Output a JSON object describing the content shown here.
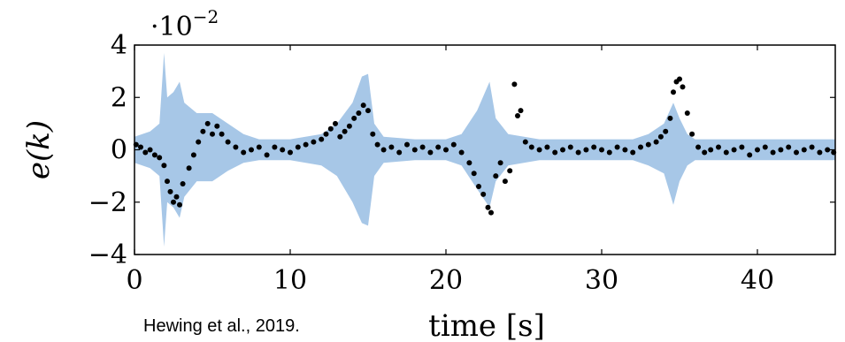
{
  "chart_data": {
    "type": "scatter",
    "xlabel": "time [s]",
    "ylabel": "e(k)",
    "xlim": [
      0,
      45
    ],
    "ylim": [
      -4,
      4
    ],
    "y_scale_annotation": {
      "base": "·10",
      "exponent": "−2"
    },
    "x_ticks": [
      "0",
      "10",
      "20",
      "30",
      "40"
    ],
    "y_ticks": [
      "−4",
      "−2",
      "0",
      "2",
      "4"
    ],
    "colors": {
      "band": "#a7c7e7",
      "points": "#000000",
      "frame": "#000000"
    },
    "uncertainty_band": {
      "name": "",
      "t": [
        0,
        1,
        1.6,
        1.9,
        2.1,
        2.5,
        2.9,
        3.2,
        4,
        5,
        6,
        7,
        8,
        10,
        12,
        13,
        14,
        14.6,
        15,
        15.4,
        16,
        18,
        20,
        21,
        22,
        22.8,
        23.2,
        24,
        26,
        28,
        30,
        32,
        33,
        34,
        34.6,
        35,
        35.5,
        36,
        38,
        40,
        42,
        45
      ],
      "upper": [
        0.5,
        0.7,
        1.0,
        3.7,
        2.0,
        2.2,
        2.6,
        1.8,
        1.4,
        1.4,
        1.0,
        0.6,
        0.4,
        0.4,
        0.6,
        1.0,
        1.8,
        2.8,
        2.9,
        1.0,
        0.5,
        0.4,
        0.4,
        0.6,
        1.5,
        2.6,
        1.2,
        0.6,
        0.4,
        0.4,
        0.4,
        0.4,
        0.6,
        1.0,
        1.8,
        1.2,
        0.6,
        0.4,
        0.4,
        0.4,
        0.4,
        0.4
      ],
      "lower": [
        -0.5,
        -0.7,
        -1.0,
        -3.7,
        -2.0,
        -2.2,
        -2.6,
        -1.8,
        -1.2,
        -1.2,
        -0.8,
        -0.5,
        -0.4,
        -0.4,
        -0.6,
        -1.0,
        -2.0,
        -2.8,
        -2.9,
        -1.0,
        -0.5,
        -0.4,
        -0.4,
        -0.6,
        -1.5,
        -2.2,
        -1.2,
        -0.6,
        -0.4,
        -0.4,
        -0.4,
        -0.4,
        -0.6,
        -0.9,
        -2.1,
        -1.2,
        -0.6,
        -0.4,
        -0.4,
        -0.4,
        -0.4,
        -0.4
      ]
    },
    "points": {
      "name": "",
      "x": [
        0.1,
        0.4,
        0.7,
        1.0,
        1.3,
        1.6,
        1.9,
        2.1,
        2.3,
        2.5,
        2.7,
        2.9,
        3.1,
        3.5,
        3.8,
        4.1,
        4.4,
        4.7,
        5.0,
        5.3,
        5.6,
        6.0,
        6.5,
        7.0,
        7.5,
        8.0,
        8.5,
        9.0,
        9.5,
        10.0,
        10.5,
        11.0,
        11.5,
        12.0,
        12.3,
        12.6,
        12.9,
        13.2,
        13.5,
        13.8,
        14.1,
        14.4,
        14.7,
        15.0,
        15.3,
        15.6,
        16.0,
        16.5,
        17.0,
        17.5,
        18.0,
        18.5,
        19.0,
        19.5,
        20.0,
        20.5,
        21.0,
        21.5,
        21.8,
        22.1,
        22.4,
        22.7,
        22.9,
        23.2,
        23.5,
        23.8,
        24.1,
        24.4,
        24.6,
        24.8,
        25.1,
        25.5,
        26.0,
        26.5,
        27.0,
        27.5,
        28.0,
        28.5,
        29.0,
        29.5,
        30.0,
        30.5,
        31.0,
        31.5,
        32.0,
        32.5,
        33.0,
        33.5,
        33.8,
        34.1,
        34.4,
        34.6,
        34.8,
        35.0,
        35.2,
        35.5,
        35.8,
        36.2,
        36.6,
        37.0,
        37.5,
        38.0,
        38.5,
        39.0,
        39.5,
        40.0,
        40.5,
        41.0,
        41.5,
        42.0,
        42.5,
        43.0,
        43.5,
        44.0,
        44.5,
        44.9
      ],
      "y": [
        0.2,
        0.1,
        -0.1,
        0.0,
        -0.2,
        -0.3,
        -0.6,
        -1.2,
        -1.6,
        -2.0,
        -1.8,
        -2.1,
        -1.3,
        -0.7,
        -0.2,
        0.3,
        0.7,
        1.0,
        0.6,
        0.9,
        0.6,
        0.3,
        0.1,
        -0.1,
        0.0,
        0.1,
        -0.2,
        0.1,
        0.0,
        -0.1,
        0.1,
        0.2,
        0.3,
        0.4,
        0.6,
        0.8,
        1.0,
        0.5,
        0.7,
        0.9,
        1.2,
        1.4,
        1.7,
        1.5,
        0.6,
        0.2,
        0.0,
        0.1,
        -0.1,
        0.2,
        0.0,
        0.1,
        -0.1,
        0.1,
        0.0,
        0.2,
        -0.1,
        -0.5,
        -0.9,
        -1.4,
        -1.7,
        -2.2,
        -2.4,
        -1.0,
        -0.5,
        -1.2,
        -0.8,
        2.5,
        1.3,
        1.5,
        0.3,
        0.1,
        0.0,
        0.1,
        -0.1,
        0.0,
        0.1,
        -0.1,
        0.0,
        0.1,
        0.0,
        -0.1,
        0.1,
        0.0,
        -0.1,
        0.1,
        0.2,
        0.3,
        0.5,
        0.7,
        1.2,
        2.2,
        2.6,
        2.7,
        2.4,
        1.4,
        0.6,
        0.1,
        -0.1,
        0.0,
        0.1,
        -0.1,
        0.0,
        0.1,
        -0.2,
        0.0,
        0.1,
        -0.1,
        0.0,
        0.1,
        -0.1,
        0.0,
        0.1,
        -0.1,
        0.0,
        -0.1
      ]
    }
  },
  "citation": "Hewing et al., 2019."
}
